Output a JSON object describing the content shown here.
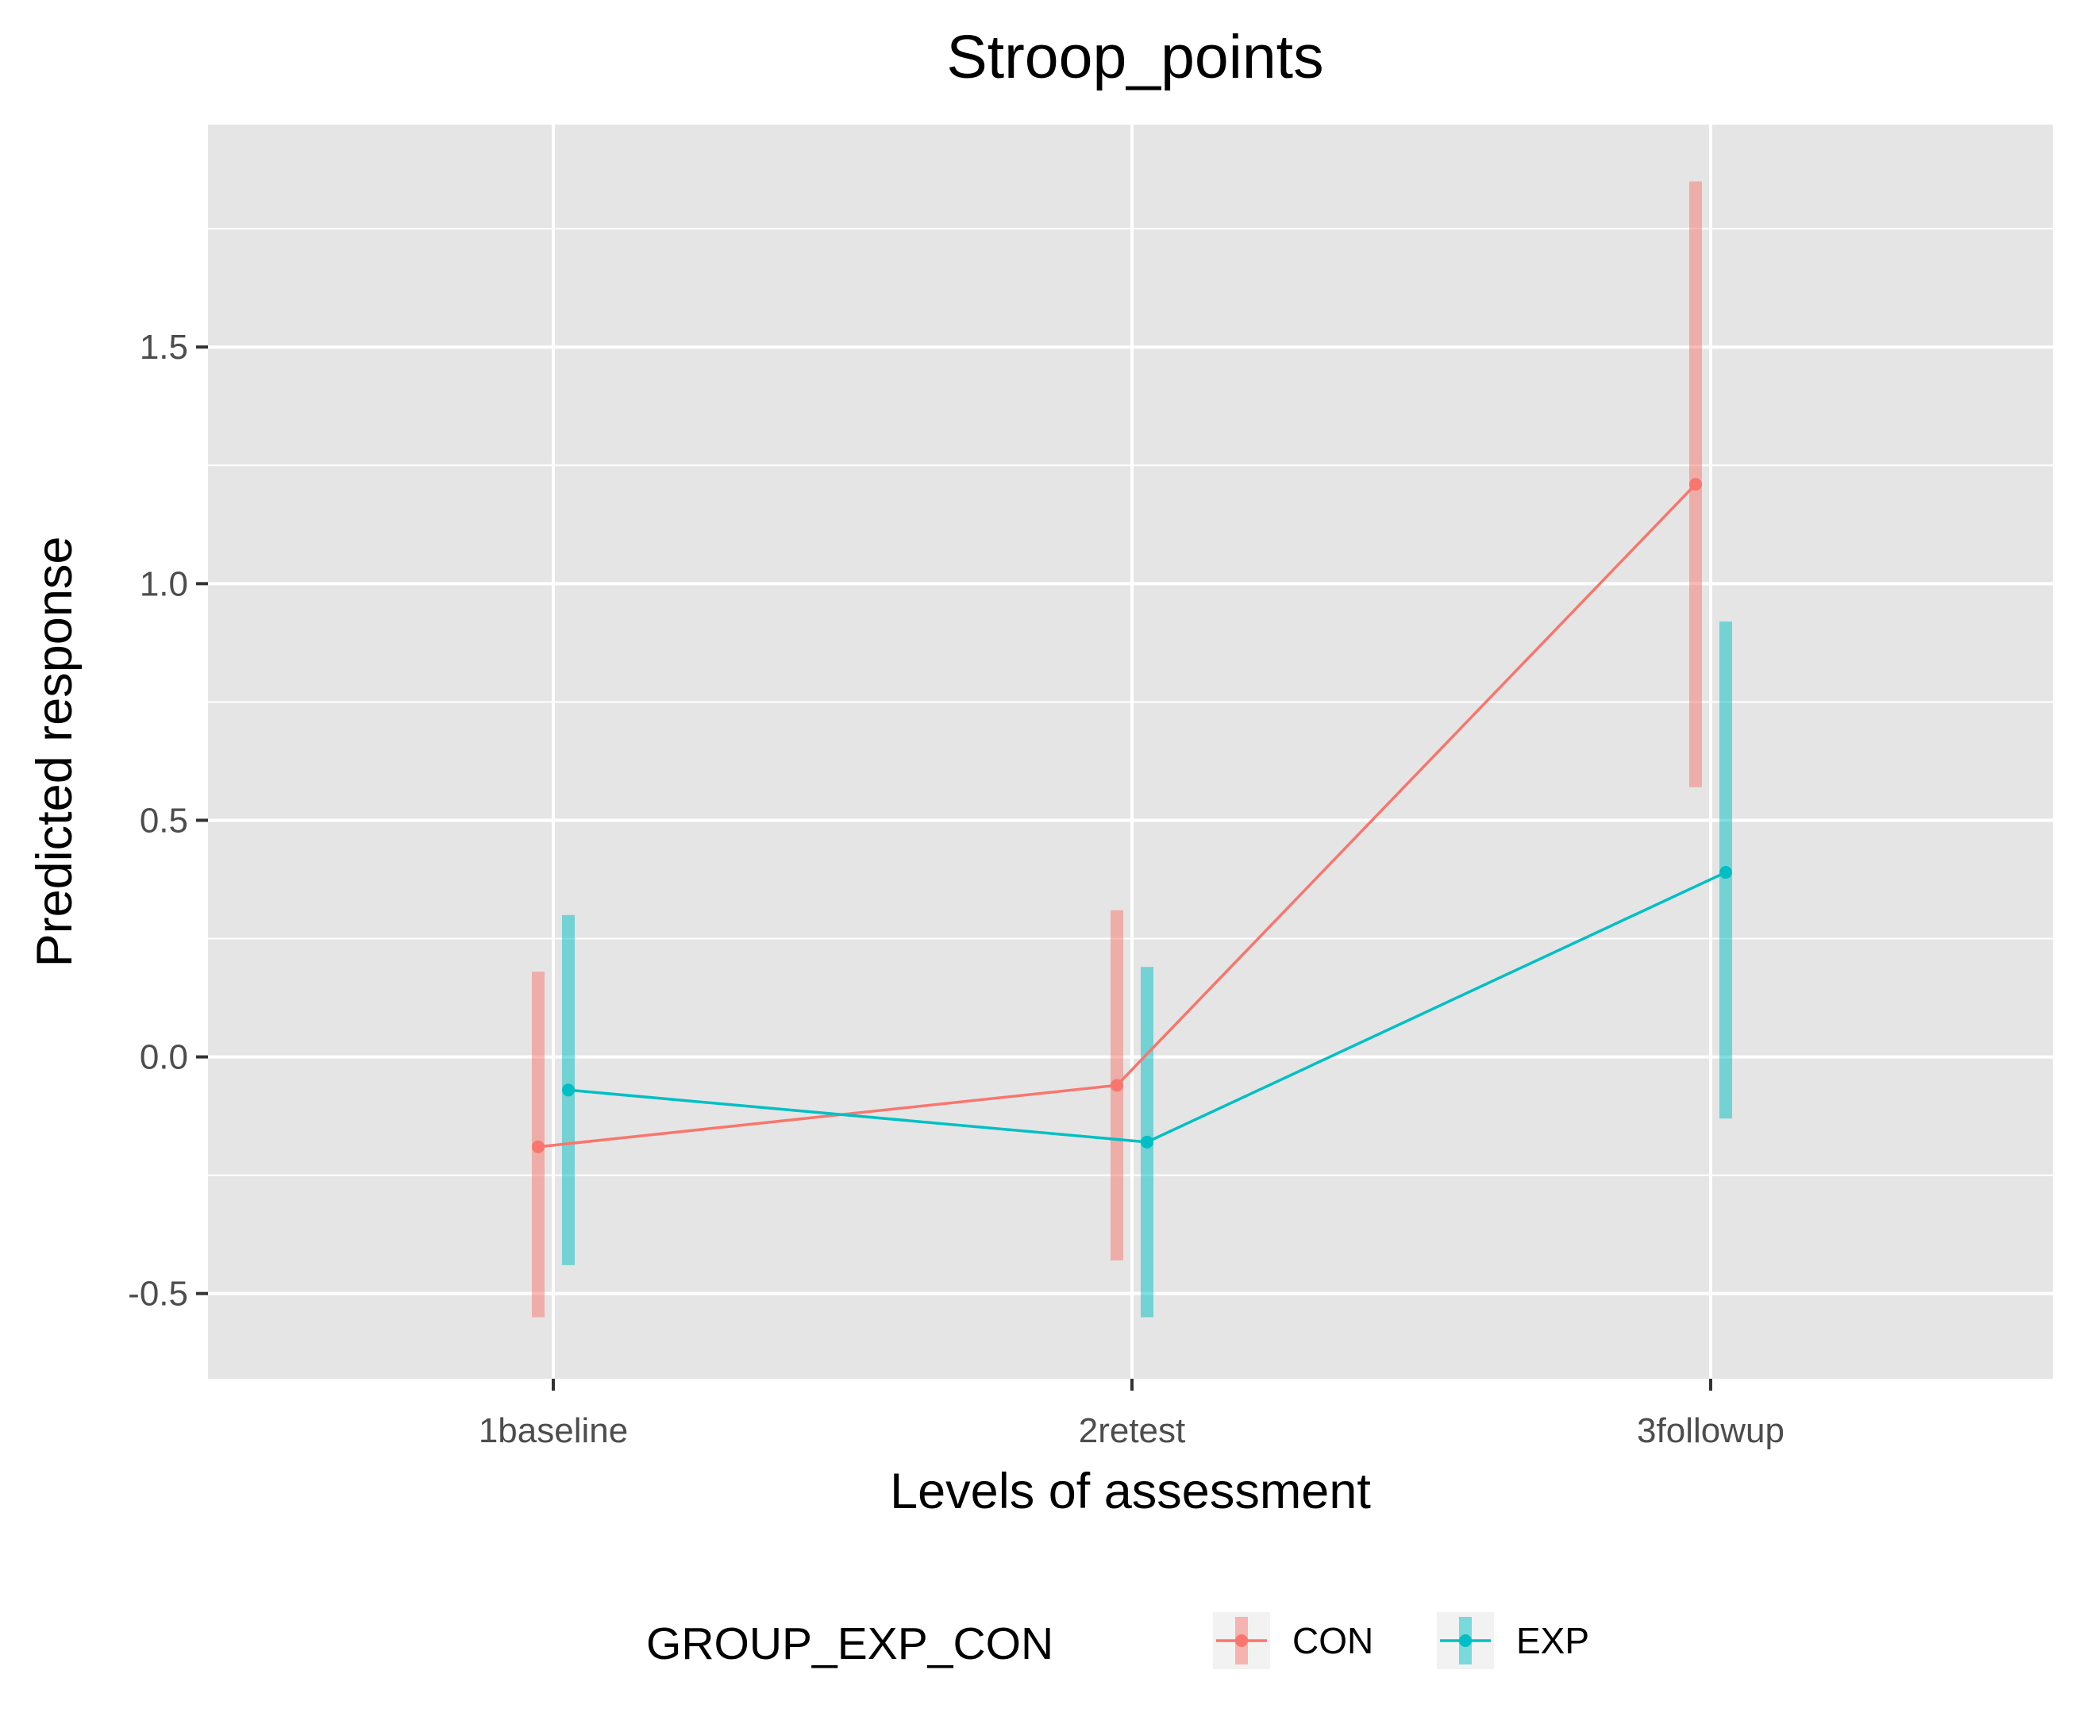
{
  "chart_data": {
    "type": "line",
    "title": "Stroop_points",
    "xlabel": "Levels of assessment",
    "ylabel": "Predicted response",
    "categories": [
      "1baseline",
      "2retest",
      "3followup"
    ],
    "ylim": [
      -0.68,
      1.97
    ],
    "yticks": [
      -0.5,
      0.0,
      0.5,
      1.0,
      1.5
    ],
    "ytick_labels": [
      "-0.5",
      "0.0",
      "0.5",
      "1.0",
      "1.5"
    ],
    "grid": true,
    "legend": {
      "title": "GROUP_EXP_CON",
      "position": "bottom"
    },
    "series": [
      {
        "name": "CON",
        "color": "#f8766d",
        "values": [
          -0.19,
          -0.06,
          1.21
        ],
        "lower": [
          -0.55,
          -0.43,
          0.57
        ],
        "upper": [
          0.18,
          0.31,
          1.85
        ]
      },
      {
        "name": "EXP",
        "color": "#00bfc4",
        "values": [
          -0.07,
          -0.18,
          0.39
        ],
        "lower": [
          -0.44,
          -0.55,
          -0.13
        ],
        "upper": [
          0.3,
          0.19,
          0.92
        ]
      }
    ]
  }
}
